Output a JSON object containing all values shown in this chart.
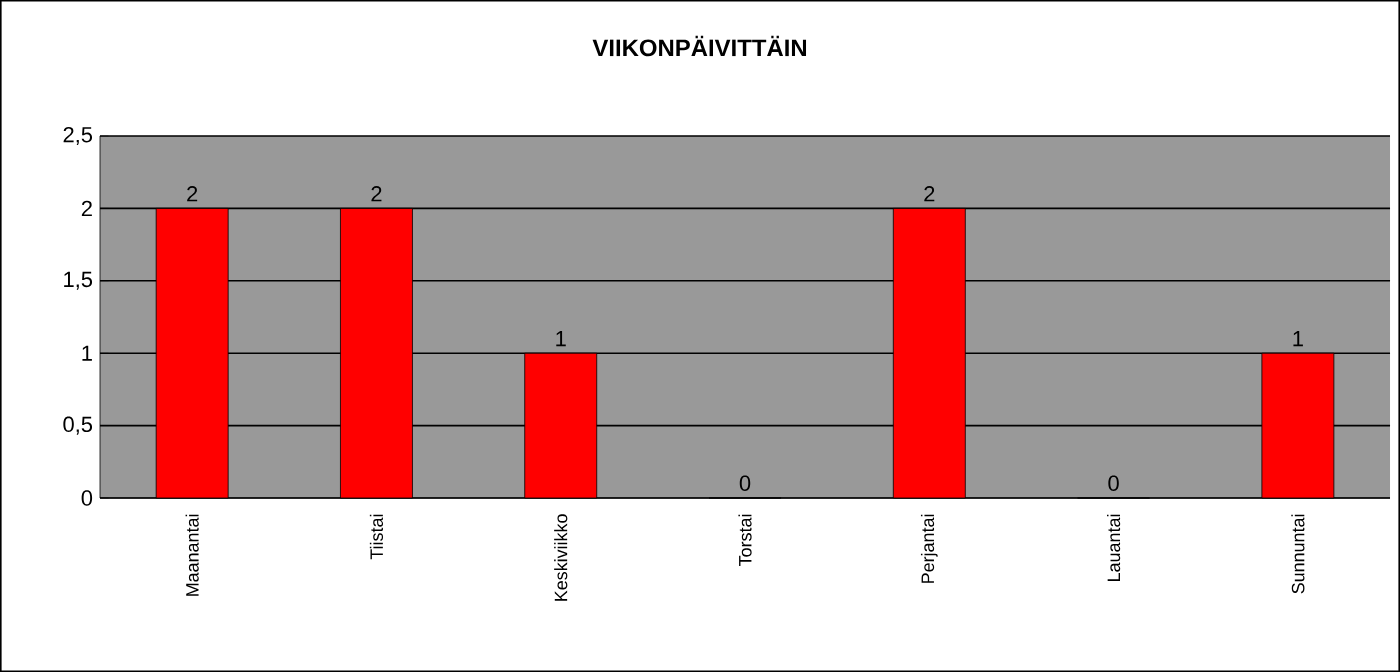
{
  "chart_data": {
    "type": "bar",
    "title": "VIIKONPÄIVITTÄIN",
    "categories": [
      "Maanantai",
      "Tiistai",
      "Keskiviikko",
      "Torstai",
      "Perjantai",
      "Lauantai",
      "Sunnuntai"
    ],
    "values": [
      2,
      2,
      1,
      0,
      2,
      0,
      1
    ],
    "color": "#ff0000",
    "ylim": [
      0,
      2.5
    ],
    "yticks": [
      0,
      {
        "value": 0.5,
        "label": "0,5"
      },
      1,
      {
        "value": 1.5,
        "label": "1,5"
      },
      2,
      {
        "value": 2.5,
        "label": "2,5"
      }
    ],
    "grid": "y",
    "data_labels": true
  }
}
